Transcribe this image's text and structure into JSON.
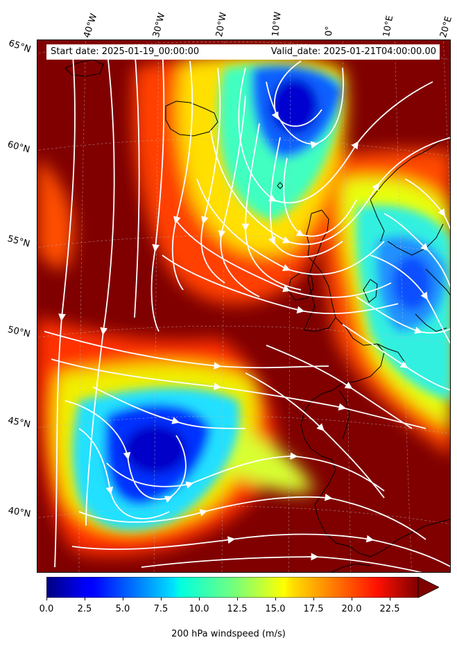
{
  "info": {
    "start_date": "Start date: 2025-01-19_00:00:00",
    "valid_date": "Valid_date: 2025-01-21T04:00:00.00"
  },
  "lon_labels": [
    "40°W",
    "30°W",
    "20°W",
    "10°W",
    "0°",
    "10°E",
    "20°E"
  ],
  "lat_labels": [
    "65°N",
    "60°N",
    "55°N",
    "50°N",
    "45°N",
    "40°N"
  ],
  "colorbar": {
    "label": "200 hPa windspeed (m/s)",
    "ticks": [
      "0.0",
      "2.5",
      "5.0",
      "7.5",
      "10.0",
      "12.5",
      "15.0",
      "17.5",
      "20.0",
      "22.5"
    ],
    "min": 0,
    "max": 25,
    "extend": "max",
    "colormap": "jet"
  },
  "colors": {
    "high_wind": "#800000",
    "low_wind": "#00008f",
    "streamline": "#ffffff",
    "coastline": "#000000"
  }
}
